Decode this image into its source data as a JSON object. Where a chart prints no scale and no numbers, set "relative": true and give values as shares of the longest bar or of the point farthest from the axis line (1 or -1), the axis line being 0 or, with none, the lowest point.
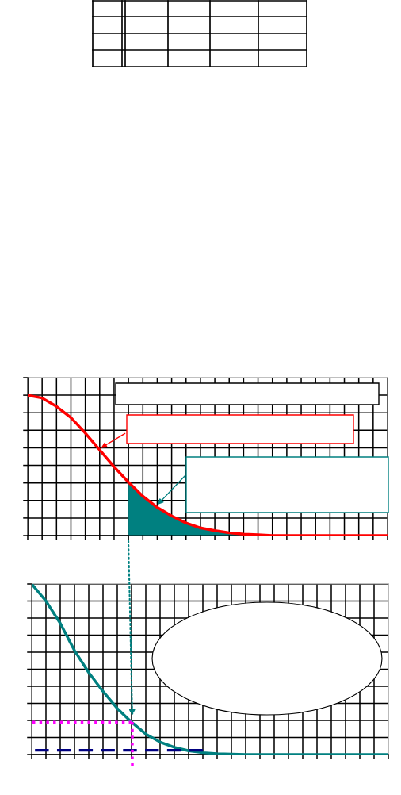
{
  "chart_data": [
    {
      "type": "line",
      "relative": true,
      "categories": [
        null,
        null,
        null,
        null,
        null,
        null,
        null,
        null,
        null,
        null,
        null,
        null,
        null,
        null,
        null,
        null,
        null,
        null,
        null,
        null,
        null,
        null,
        null,
        null,
        null,
        null
      ],
      "grid": true,
      "tick_labels": false,
      "series": [
        {
          "type": "area",
          "color": "#008080",
          "values": [
            null,
            null,
            null,
            null,
            null,
            null,
            null,
            0.38,
            0.28,
            0.2,
            0.14,
            0.09,
            0.055,
            0.035,
            0.02,
            0.01,
            null,
            null,
            null,
            null,
            null,
            null,
            null,
            null,
            null,
            null
          ]
        },
        {
          "type": "line",
          "color": "#ff0000",
          "line_style": "solid",
          "values": [
            1.0,
            0.98,
            0.92,
            0.84,
            0.73,
            0.61,
            0.49,
            0.38,
            0.28,
            0.2,
            0.14,
            0.09,
            0.055,
            0.035,
            0.02,
            0.01,
            0.006,
            0,
            0,
            0,
            0,
            0,
            0,
            0,
            0,
            0
          ]
        }
      ]
    },
    {
      "type": "line",
      "relative": true,
      "categories": [
        null,
        null,
        null,
        null,
        null,
        null,
        null,
        null,
        null,
        null,
        null,
        null,
        null,
        null,
        null,
        null,
        null,
        null,
        null,
        null,
        null,
        null,
        null,
        null,
        null,
        null
      ],
      "grid": true,
      "tick_labels": false,
      "series": [
        {
          "type": "line",
          "color": "#008080",
          "line_style": "solid",
          "values": [
            1.0,
            0.9,
            0.77,
            0.61,
            0.48,
            0.37,
            0.27,
            0.19,
            0.12,
            0.073,
            0.042,
            0.022,
            0.011,
            0.005,
            0.002,
            0,
            0,
            0,
            0,
            0,
            0,
            0,
            0,
            0,
            0,
            0
          ]
        },
        {
          "type": "line",
          "color": "#ff00ff",
          "line_style": "dotted",
          "values": [
            0.19,
            0.19,
            0.19,
            0.19,
            0.19,
            0.19,
            0.19,
            0.19,
            null,
            null,
            null,
            null,
            null,
            null,
            null,
            null,
            null,
            null,
            null,
            null,
            null,
            null,
            null,
            null,
            null,
            null
          ]
        },
        {
          "type": "line",
          "color": "#000080",
          "line_style": "dashed",
          "values": [
            0.025,
            0.025,
            0.025,
            0.025,
            0.025,
            0.025,
            0.025,
            0.025,
            0.025,
            0.025,
            0.025,
            0.025,
            0.025,
            null,
            null,
            null,
            null,
            null,
            null,
            null,
            null,
            null,
            null,
            null,
            null,
            null
          ]
        }
      ]
    }
  ]
}
